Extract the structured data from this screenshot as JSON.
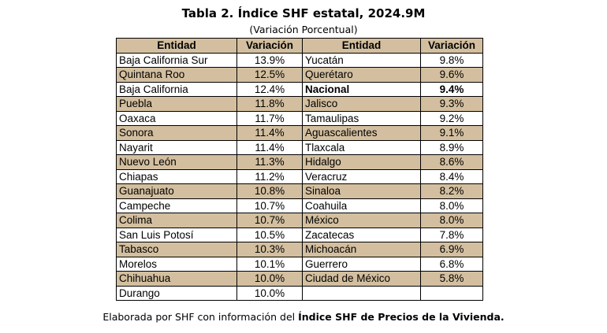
{
  "title": "Tabla 2. Índice SHF estatal, 2024.9M",
  "subtitle": "(Variación Porcentual)",
  "headers": [
    "Entidad",
    "Variación",
    "Entidad",
    "Variación"
  ],
  "left_rows": [
    {
      "entidad": "Baja California Sur",
      "variacion": "13.9%"
    },
    {
      "entidad": "Quintana Roo",
      "variacion": "12.5%"
    },
    {
      "entidad": "Baja California",
      "variacion": "12.4%"
    },
    {
      "entidad": "Puebla",
      "variacion": "11.8%"
    },
    {
      "entidad": "Oaxaca",
      "variacion": "11.7%"
    },
    {
      "entidad": "Sonora",
      "variacion": "11.4%"
    },
    {
      "entidad": "Nayarit",
      "variacion": "11.4%"
    },
    {
      "entidad": "Nuevo León",
      "variacion": "11.3%"
    },
    {
      "entidad": "Chiapas",
      "variacion": "11.2%"
    },
    {
      "entidad": "Guanajuato",
      "variacion": "10.8%"
    },
    {
      "entidad": "Campeche",
      "variacion": "10.7%"
    },
    {
      "entidad": "Colima",
      "variacion": "10.7%"
    },
    {
      "entidad": "San Luis Potosí",
      "variacion": "10.5%"
    },
    {
      "entidad": "Tabasco",
      "variacion": "10.3%"
    },
    {
      "entidad": "Morelos",
      "variacion": "10.1%"
    },
    {
      "entidad": "Chihuahua",
      "variacion": "10.0%"
    },
    {
      "entidad": "Durango",
      "variacion": "10.0%"
    }
  ],
  "right_rows": [
    {
      "entidad": "Yucatán",
      "variacion": "9.8%"
    },
    {
      "entidad": "Querétaro",
      "variacion": "9.6%"
    },
    {
      "entidad": "Nacional",
      "variacion": "9.4%"
    },
    {
      "entidad": "Jalisco",
      "variacion": "9.3%"
    },
    {
      "entidad": "Tamaulipas",
      "variacion": "9.2%"
    },
    {
      "entidad": "Aguascalientes",
      "variacion": "9.1%"
    },
    {
      "entidad": "Tlaxcala",
      "variacion": "8.9%"
    },
    {
      "entidad": "Hidalgo",
      "variacion": "8.6%"
    },
    {
      "entidad": "Veracruz",
      "variacion": "8.4%"
    },
    {
      "entidad": "Sinaloa",
      "variacion": "8.2%"
    },
    {
      "entidad": "Coahuila",
      "variacion": "8.0%"
    },
    {
      "entidad": "México",
      "variacion": "8.0%"
    },
    {
      "entidad": "Zacatecas",
      "variacion": "7.8%"
    },
    {
      "entidad": "Michoacán",
      "variacion": "6.9%"
    },
    {
      "entidad": "Guerrero",
      "variacion": "6.8%"
    },
    {
      "entidad": "Ciudad de México",
      "variacion": "5.8%"
    }
  ],
  "note": {
    "prefix": "Elaborada por SHF con información del ",
    "bold": "Índice SHF de Precios de la Vivienda."
  },
  "colors": {
    "header_fill": "#d3bf9f",
    "row_shade": "#d3bf9f"
  }
}
